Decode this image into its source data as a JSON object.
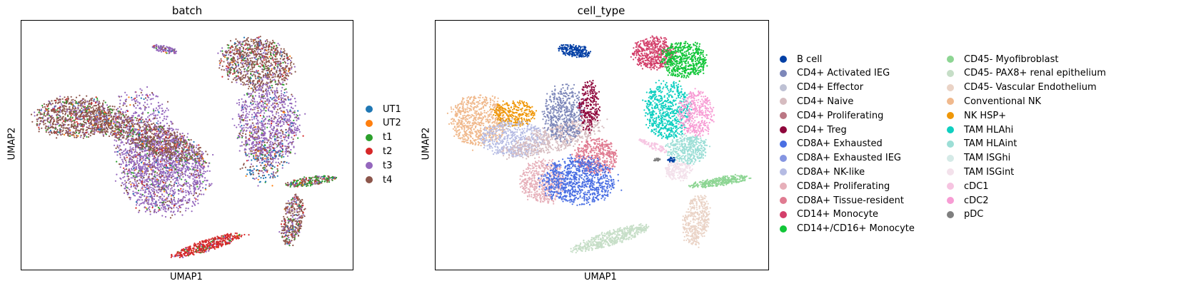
{
  "chart_data": [
    {
      "type": "scatter",
      "title": "batch",
      "xlabel": "UMAP1",
      "ylabel": "UMAP2",
      "grid": false,
      "legend_placement": "right",
      "series": [
        {
          "name": "UT1",
          "color": "#1f77b4"
        },
        {
          "name": "UT2",
          "color": "#ff7f0e"
        },
        {
          "name": "t1",
          "color": "#2ca02c"
        },
        {
          "name": "t2",
          "color": "#d62728"
        },
        {
          "name": "t3",
          "color": "#9467bd"
        },
        {
          "name": "t4",
          "color": "#8c564b"
        }
      ]
    },
    {
      "type": "scatter",
      "title": "cell_type",
      "xlabel": "UMAP1",
      "ylabel": "UMAP2",
      "grid": false,
      "legend_placement": "right",
      "series": [
        {
          "name": "B cell",
          "color": "#023fa5"
        },
        {
          "name": "CD4+ Activated IEG",
          "color": "#7d87b9"
        },
        {
          "name": "CD4+ Effector",
          "color": "#bec1d4"
        },
        {
          "name": "CD4+ Naive",
          "color": "#d6bcc0"
        },
        {
          "name": "CD4+ Proliferating",
          "color": "#bb7784"
        },
        {
          "name": "CD4+ Treg",
          "color": "#8e063b"
        },
        {
          "name": "CD8A+ Exhausted",
          "color": "#4a6fe3"
        },
        {
          "name": "CD8A+ Exhausted IEG",
          "color": "#8595e1"
        },
        {
          "name": "CD8A+ NK-like",
          "color": "#b5bbe3"
        },
        {
          "name": "CD8A+ Proliferating",
          "color": "#e6afb9"
        },
        {
          "name": "CD8A+ Tissue-resident",
          "color": "#e07b91"
        },
        {
          "name": "CD14+ Monocyte",
          "color": "#d33f6a"
        },
        {
          "name": "CD14+/CD16+ Monocyte",
          "color": "#11c638"
        },
        {
          "name": "CD45- Myofibroblast",
          "color": "#8dd593"
        },
        {
          "name": "CD45- PAX8+ renal epithelium",
          "color": "#c6dec7"
        },
        {
          "name": "CD45- Vascular Endothelium",
          "color": "#ead3c6"
        },
        {
          "name": "Conventional NK",
          "color": "#f0b98d"
        },
        {
          "name": "NK HSP+",
          "color": "#ef9708"
        },
        {
          "name": "TAM HLAhi",
          "color": "#0fcfc0"
        },
        {
          "name": "TAM HLAint",
          "color": "#9cded6"
        },
        {
          "name": "TAM ISGhi",
          "color": "#d5eae7"
        },
        {
          "name": "TAM ISGint",
          "color": "#f3e1eb"
        },
        {
          "name": "cDC1",
          "color": "#f6c4e1"
        },
        {
          "name": "cDC2",
          "color": "#f79cd4"
        },
        {
          "name": "pDC",
          "color": "#7f7f7f"
        }
      ]
    }
  ]
}
